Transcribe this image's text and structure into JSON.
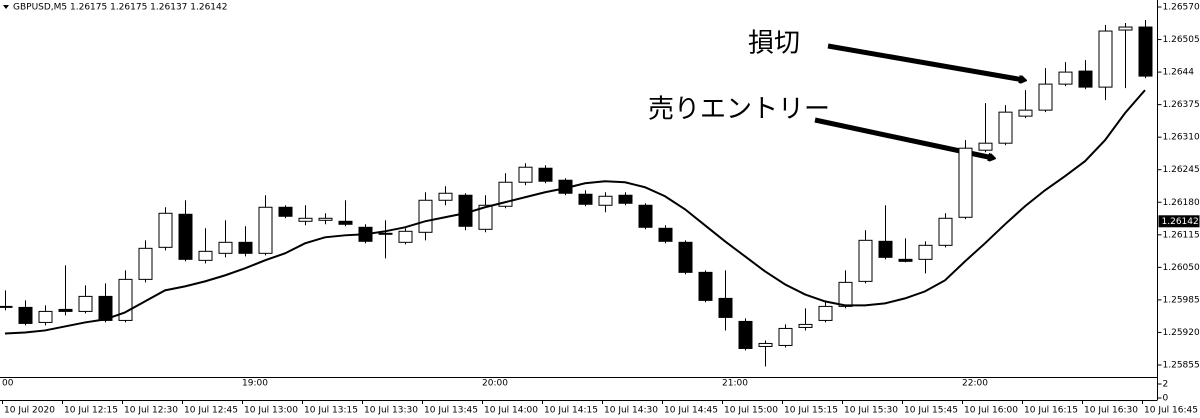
{
  "chart_data": {
    "type": "candlestick",
    "title": "GBPUSD,M5  1.26175 1.26175 1.26137 1.26142",
    "categories": [
      "10 Jul 2020",
      null,
      null,
      "10 Jul 12:15",
      null,
      null,
      "10 Jul 12:30",
      null,
      null,
      "10 Jul 12:45",
      null,
      null,
      "10 Jul 13:00",
      null,
      null,
      "10 Jul 13:15",
      null,
      null,
      "10 Jul 13:30",
      null,
      null,
      "10 Jul 13:45",
      null,
      null,
      "10 Jul 14:00",
      null,
      null,
      "10 Jul 14:15",
      null,
      null,
      "10 Jul 14:30",
      null,
      null,
      "10 Jul 14:45",
      null,
      null,
      "10 Jul 15:00",
      null,
      null,
      "10 Jul 15:15",
      null,
      null,
      "10 Jul 15:30",
      null,
      null,
      "10 Jul 15:45",
      null,
      null,
      "10 Jul 16:00",
      null,
      null,
      "10 Jul 16:15",
      null,
      null,
      "10 Jul 16:30",
      null,
      null,
      "10 Jul 16:45"
    ],
    "subwindow_time_labels": [
      "00",
      null,
      null,
      null,
      null,
      null,
      null,
      null,
      null,
      null,
      null,
      null,
      "19:00",
      null,
      null,
      null,
      null,
      null,
      null,
      null,
      null,
      null,
      null,
      null,
      "20:00",
      null,
      null,
      null,
      null,
      null,
      null,
      null,
      null,
      null,
      null,
      null,
      "21:00",
      null,
      null,
      null,
      null,
      null,
      null,
      null,
      null,
      null,
      null,
      null,
      "22:00",
      null,
      null,
      null,
      null,
      null,
      null,
      null,
      null,
      null
    ],
    "open": [
      1.25972,
      1.2597,
      1.2594,
      1.25966,
      1.25962,
      1.25992,
      1.25944,
      1.26026,
      1.2609,
      1.26156,
      1.26064,
      1.26078,
      1.261,
      1.26078,
      1.2617,
      1.26142,
      1.26144,
      1.26142,
      1.2613,
      1.26118,
      1.261,
      1.2612,
      1.26184,
      1.26194,
      1.26126,
      1.26172,
      1.2622,
      1.26248,
      1.26224,
      1.26196,
      1.26174,
      1.26194,
      1.26174,
      1.26128,
      1.261,
      1.2604,
      1.25988,
      1.25942,
      1.25892,
      1.25894,
      1.2593,
      1.25944,
      1.25972,
      1.26022,
      1.26102,
      1.26066,
      1.26066,
      1.26094,
      1.2615,
      1.26284,
      1.26298,
      1.26352,
      1.26364,
      1.26416,
      1.26442,
      1.2641,
      1.26524,
      1.2653
    ],
    "high": [
      1.26004,
      1.25984,
      1.25974,
      1.26054,
      1.26014,
      1.26018,
      1.26044,
      1.26104,
      1.2617,
      1.26184,
      1.26128,
      1.26144,
      1.26132,
      1.26194,
      1.26174,
      1.26174,
      1.26158,
      1.26184,
      1.26136,
      1.26144,
      1.26128,
      1.262,
      1.26212,
      1.26198,
      1.26194,
      1.26238,
      1.26258,
      1.26254,
      1.26228,
      1.26204,
      1.262,
      1.262,
      1.26178,
      1.26134,
      1.26104,
      1.26044,
      1.26044,
      1.25948,
      1.25904,
      1.25936,
      1.25968,
      1.25984,
      1.26044,
      1.26124,
      1.26174,
      1.26108,
      1.26102,
      1.26158,
      1.26304,
      1.26378,
      1.26374,
      1.26404,
      1.26448,
      1.2646,
      1.26464,
      1.26534,
      1.26538,
      1.26544
    ],
    "low": [
      1.25964,
      1.25934,
      1.25934,
      1.25954,
      1.25958,
      1.2594,
      1.2594,
      1.2602,
      1.26084,
      1.26062,
      1.26058,
      1.2607,
      1.26072,
      1.26074,
      1.26148,
      1.26134,
      1.26136,
      1.26132,
      1.26098,
      1.26068,
      1.26096,
      1.26104,
      1.26174,
      1.26124,
      1.2612,
      1.26168,
      1.26214,
      1.26218,
      1.26194,
      1.26172,
      1.2616,
      1.26174,
      1.26126,
      1.26098,
      1.26036,
      1.2598,
      1.25924,
      1.25884,
      1.25852,
      1.2589,
      1.25924,
      1.2594,
      1.25968,
      1.26018,
      1.26066,
      1.2606,
      1.26038,
      1.2609,
      1.26146,
      1.2628,
      1.26294,
      1.26348,
      1.2636,
      1.26412,
      1.26406,
      1.26384,
      1.26408,
      1.26428
    ],
    "close": [
      1.2597,
      1.25938,
      1.25962,
      1.25962,
      1.25992,
      1.25944,
      1.26026,
      1.26088,
      1.26158,
      1.26066,
      1.26082,
      1.261,
      1.26078,
      1.2617,
      1.26152,
      1.26148,
      1.26148,
      1.26136,
      1.26102,
      1.26116,
      1.26122,
      1.26184,
      1.26198,
      1.26132,
      1.26174,
      1.2622,
      1.2625,
      1.26222,
      1.26198,
      1.26176,
      1.26192,
      1.26178,
      1.2613,
      1.26102,
      1.2604,
      1.25984,
      1.2595,
      1.25888,
      1.25898,
      1.25928,
      1.25936,
      1.25972,
      1.2602,
      1.26104,
      1.2607,
      1.26062,
      1.26094,
      1.26148,
      1.26288,
      1.26298,
      1.2636,
      1.26364,
      1.26416,
      1.2644,
      1.2641,
      1.26522,
      1.2653,
      1.26432
    ],
    "up_color": "#ffffff",
    "down_color": "#000000",
    "moving_average": {
      "color": "#000000",
      "values": [
        1.25918,
        1.2592,
        1.25924,
        1.25932,
        1.2594,
        1.25946,
        1.2596,
        1.25982,
        1.26004,
        1.26012,
        1.26022,
        1.26034,
        1.26048,
        1.26064,
        1.26078,
        1.26098,
        1.2611,
        1.26114,
        1.26116,
        1.26122,
        1.2613,
        1.26142,
        1.2615,
        1.26158,
        1.2617,
        1.2618,
        1.2619,
        1.262,
        1.26208,
        1.26218,
        1.26222,
        1.2622,
        1.2621,
        1.26192,
        1.26166,
        1.26134,
        1.26102,
        1.26072,
        1.26042,
        1.26016,
        1.25996,
        1.25982,
        1.25974,
        1.25974,
        1.25978,
        1.25988,
        1.26002,
        1.26024,
        1.26062,
        1.26098,
        1.26136,
        1.26172,
        1.26204,
        1.26232,
        1.26262,
        1.26304,
        1.26358,
        1.26404
      ]
    },
    "ylim": [
      1.25831,
      1.26584
    ],
    "yticks": [
      {
        "value": 1.2657,
        "label": "1.26570"
      },
      1.26505,
      1.2644,
      1.26375,
      {
        "value": 1.2631,
        "label": "1.26310"
      },
      1.26245,
      {
        "value": 1.2618,
        "label": "1.26180"
      },
      1.26115,
      {
        "value": 1.2605,
        "label": "1.26050"
      },
      1.25985,
      {
        "value": 1.2592,
        "label": "1.25920"
      },
      1.25855
    ],
    "current_price": 1.26142,
    "subwindow": {
      "ylim": [
        0,
        2
      ],
      "yticks": [
        0,
        2
      ]
    },
    "annotations": [
      "損切",
      "売りエントリー"
    ]
  }
}
